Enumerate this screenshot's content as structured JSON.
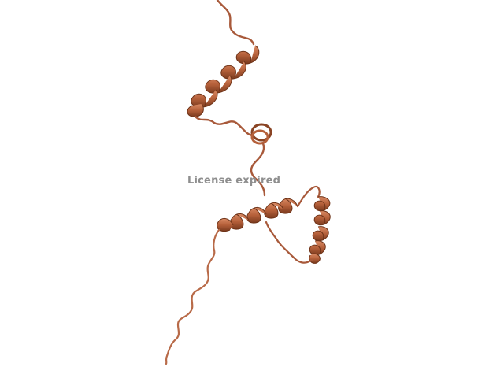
{
  "viewer": {
    "watermark_text": "License expired",
    "background_color": "#ffffff",
    "molecule": {
      "representation": "cartoon",
      "color": "#b5603a",
      "highlight_color": "#d98a64",
      "shadow_color": "#7a3a1e"
    }
  }
}
